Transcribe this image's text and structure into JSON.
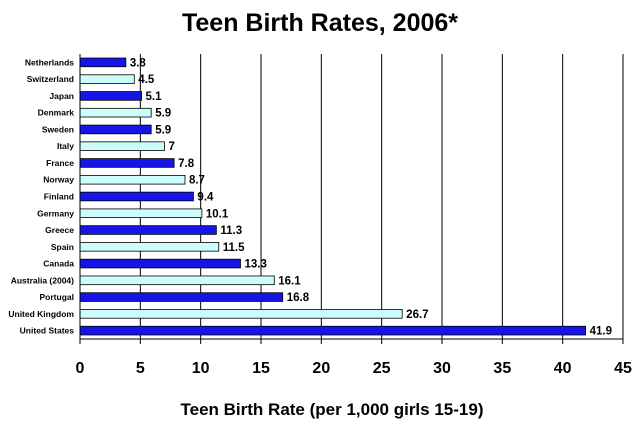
{
  "chart_data": {
    "type": "bar",
    "orientation": "horizontal",
    "title": "Teen Birth Rates, 2006*",
    "xlabel": "Teen Birth Rate (per 1,000 girls 15-19)",
    "ylabel": "",
    "xlim": [
      0,
      45
    ],
    "xticks": [
      0,
      5,
      10,
      15,
      20,
      25,
      30,
      35,
      40,
      45
    ],
    "grid": true,
    "colors": {
      "dark": "#1515e8",
      "light": "#ccfcfc"
    },
    "categories": [
      "Netherlands",
      "Switzerland",
      "Japan",
      "Denmark",
      "Sweden",
      "Italy",
      "France",
      "Norway",
      "Finland",
      "Germany",
      "Greece",
      "Spain",
      "Canada",
      "Australia (2004)",
      "Portugal",
      "United Kingdom",
      "United States"
    ],
    "values": [
      3.8,
      4.5,
      5.1,
      5.9,
      5.9,
      7,
      7.8,
      8.7,
      9.4,
      10.1,
      11.3,
      11.5,
      13.3,
      16.1,
      16.8,
      26.7,
      41.9
    ],
    "value_labels": [
      "3.8",
      "4.5",
      "5.1",
      "5.9",
      "5.9",
      "7",
      "7.8",
      "8.7",
      "9.4",
      "10.1",
      "11.3",
      "11.5",
      "13.3",
      "16.1",
      "16.8",
      "26.7",
      "41.9"
    ],
    "bar_styles": [
      "dark",
      "light",
      "dark",
      "light",
      "dark",
      "light",
      "dark",
      "light",
      "dark",
      "light",
      "dark",
      "light",
      "dark",
      "light",
      "dark",
      "light",
      "dark"
    ]
  }
}
